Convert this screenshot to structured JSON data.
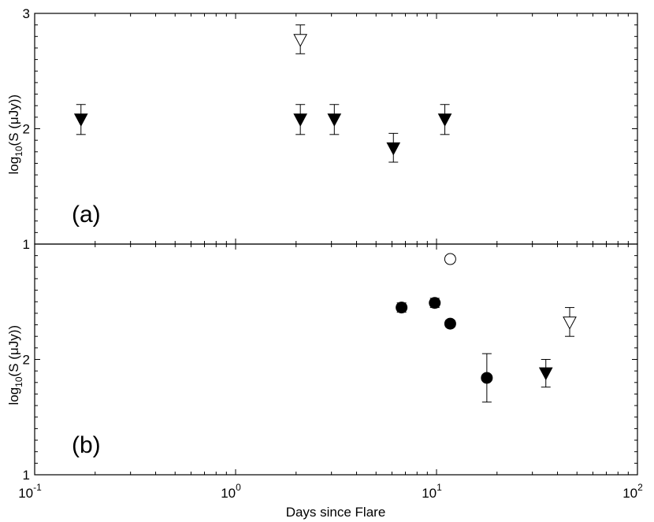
{
  "chart_data": [
    {
      "panel": "a",
      "type": "scatter",
      "panel_label": "(a)",
      "ylabel_main": "log",
      "ylabel_sub": "10",
      "ylabel_rest": "(S (μJy))",
      "x_scale": "log",
      "xlim": [
        0.1,
        100
      ],
      "ylim": [
        1,
        3
      ],
      "y_ticks": [
        "1",
        "2",
        "3"
      ],
      "series": [
        {
          "marker": "triangle-down-filled",
          "points": [
            {
              "x": 0.17,
              "y": 2.08,
              "err_lo": 0.13,
              "err_hi": 0.13
            },
            {
              "x": 2.1,
              "y": 2.08,
              "err_lo": 0.13,
              "err_hi": 0.13
            },
            {
              "x": 3.1,
              "y": 2.08,
              "err_lo": 0.13,
              "err_hi": 0.13
            },
            {
              "x": 6.1,
              "y": 1.83,
              "err_lo": 0.12,
              "err_hi": 0.13
            },
            {
              "x": 11.0,
              "y": 2.08,
              "err_lo": 0.13,
              "err_hi": 0.13
            }
          ]
        },
        {
          "marker": "triangle-down-open",
          "points": [
            {
              "x": 2.1,
              "y": 2.77,
              "err_lo": 0.12,
              "err_hi": 0.13
            }
          ]
        }
      ]
    },
    {
      "panel": "b",
      "type": "scatter",
      "panel_label": "(b)",
      "ylabel_main": "log",
      "ylabel_sub": "10",
      "ylabel_rest": "(S (μJy))",
      "x_scale": "log",
      "xlim": [
        0.1,
        100
      ],
      "ylim": [
        1,
        3
      ],
      "y_ticks": [
        "1",
        "2",
        ""
      ],
      "xlabel": "Days since Flare",
      "x_ticks": [
        {
          "base": "10",
          "exp": "-1"
        },
        {
          "base": "10",
          "exp": "0"
        },
        {
          "base": "10",
          "exp": "1"
        },
        {
          "base": "10",
          "exp": "2"
        }
      ],
      "series": [
        {
          "marker": "circle-filled",
          "points": [
            {
              "x": 6.7,
              "y": 2.45,
              "err_lo": 0.04,
              "err_hi": 0.04
            },
            {
              "x": 9.8,
              "y": 2.49,
              "err_lo": 0.04,
              "err_hi": 0.04
            },
            {
              "x": 11.7,
              "y": 2.31,
              "err_lo": 0.03,
              "err_hi": 0.03
            },
            {
              "x": 17.8,
              "y": 1.84,
              "err_lo": 0.21,
              "err_hi": 0.21
            }
          ]
        },
        {
          "marker": "circle-open",
          "points": [
            {
              "x": 11.7,
              "y": 2.87,
              "err_lo": 0.03,
              "err_hi": 0.03
            }
          ]
        },
        {
          "marker": "triangle-down-filled",
          "points": [
            {
              "x": 35.0,
              "y": 1.88,
              "err_lo": 0.12,
              "err_hi": 0.12
            }
          ]
        },
        {
          "marker": "triangle-down-open",
          "points": [
            {
              "x": 46.0,
              "y": 2.32,
              "err_lo": 0.12,
              "err_hi": 0.13
            }
          ]
        }
      ]
    }
  ]
}
